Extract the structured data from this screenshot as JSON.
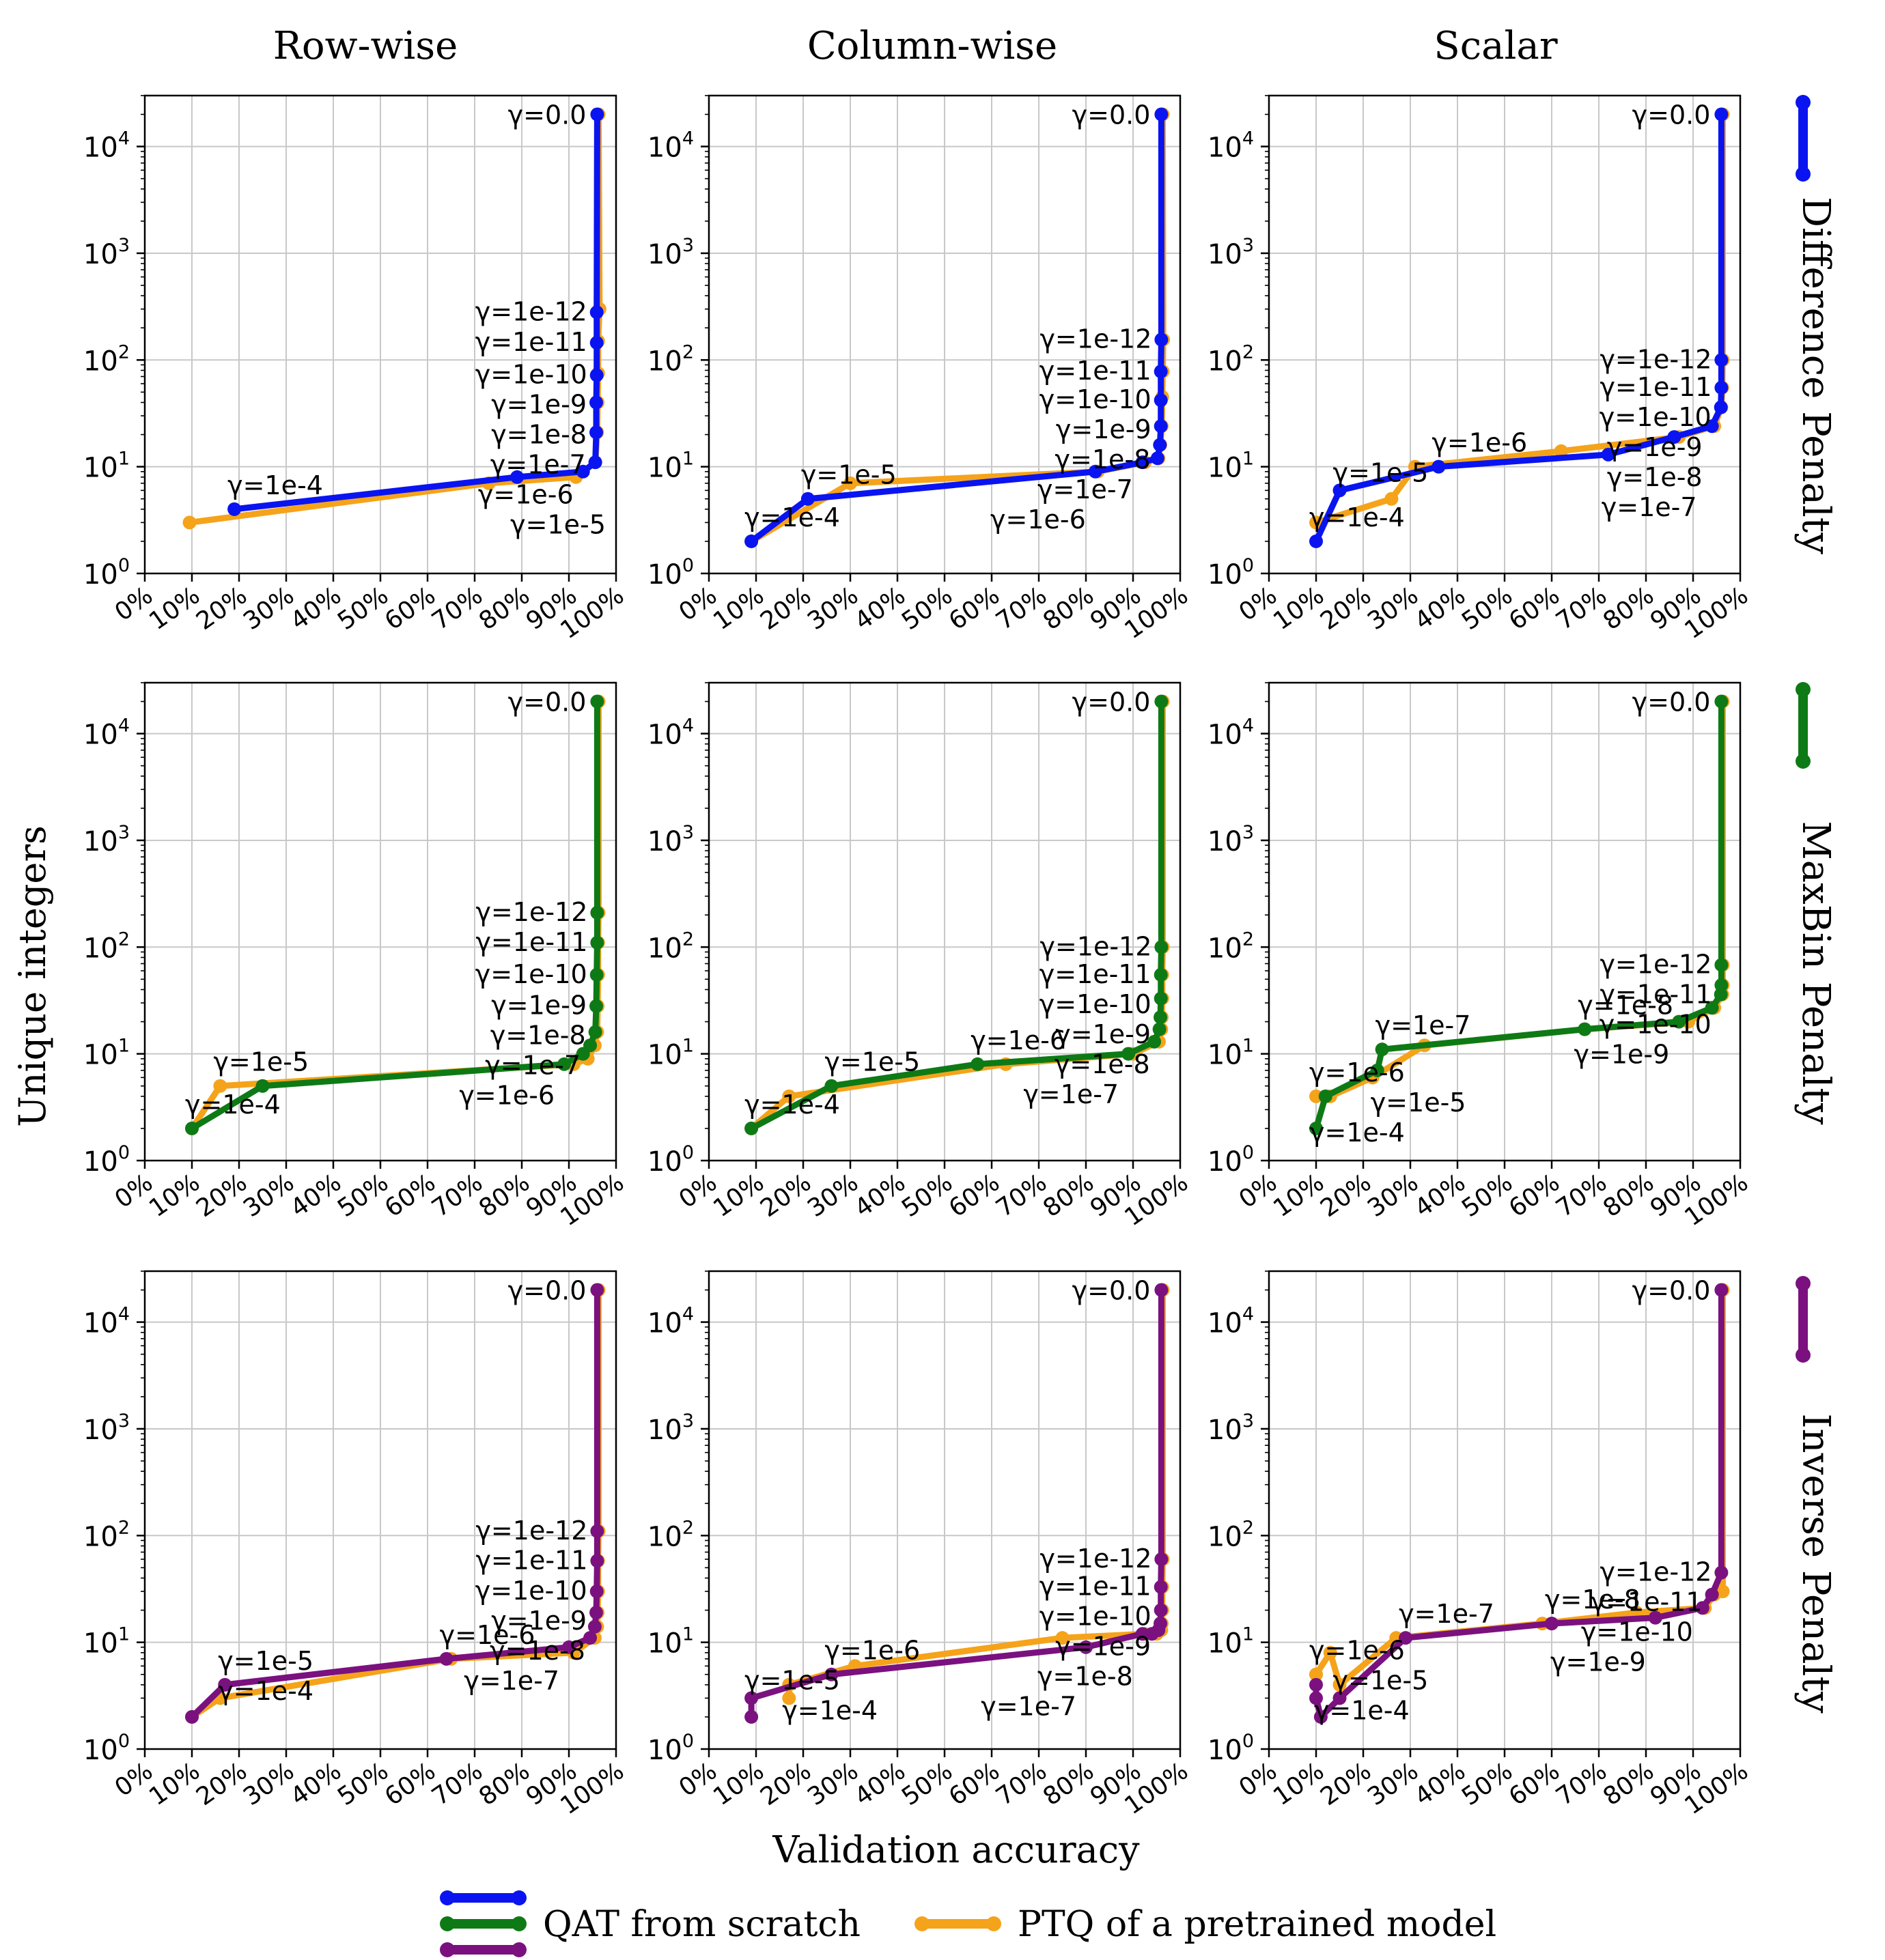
{
  "figure": {
    "col_titles": [
      "Row-wise",
      "Column-wise",
      "Scalar"
    ],
    "row_titles": [
      "Difference Penalty",
      "MaxBin Penalty",
      "Inverse Penalty"
    ],
    "xlabel": "Validation accuracy",
    "ylabel": "Unique integers"
  },
  "colors": {
    "qat_blue": "#0a14f0",
    "qat_green": "#0e7a16",
    "qat_purple": "#7a117f",
    "ptq": "#f5a31a",
    "grid": "#c8c8c8",
    "axis": "#000000"
  },
  "legend": {
    "qat_label": "QAT from scratch",
    "ptq_label": "PTQ of a pretrained model"
  },
  "axes_common": {
    "x_ticks": [
      "0%",
      "10%",
      "20%",
      "30%",
      "40%",
      "50%",
      "60%",
      "70%",
      "80%",
      "90%",
      "100%"
    ],
    "y_ticks": [
      "10",
      "10",
      "10",
      "10",
      "10"
    ],
    "y_tick_exponents": [
      "0",
      "1",
      "2",
      "3",
      "4"
    ],
    "xlim": [
      0,
      100
    ],
    "ylim": [
      1,
      30000
    ],
    "yscale": "log",
    "grid": true
  },
  "chart_data": [
    {
      "type": "line",
      "row": 0,
      "col": 0,
      "qat": {
        "x": [
          96.0,
          95.9,
          95.9,
          95.9,
          95.8,
          95.8,
          95.6,
          93.0,
          79.0,
          19.0
        ],
        "y": [
          20000,
          280,
          145,
          72,
          40,
          21,
          11,
          9,
          8,
          4
        ]
      },
      "ptq": {
        "x": [
          96.3,
          96.5,
          96.2,
          96.2,
          96.1,
          96.0,
          95.6,
          91.5,
          73.0,
          9.5
        ],
        "y": [
          20000,
          300,
          150,
          75,
          40,
          21,
          11,
          8,
          7,
          3
        ]
      },
      "annotations": [
        {
          "text": "γ=0.0",
          "x": 96.0,
          "y": 20000
        },
        {
          "text": "γ=1e-12",
          "x": 95.9,
          "y": 280
        },
        {
          "text": "γ=1e-11",
          "x": 95.9,
          "y": 145
        },
        {
          "text": "γ=1e-10",
          "x": 95.9,
          "y": 72
        },
        {
          "text": "γ=1e-9",
          "x": 95.8,
          "y": 40
        },
        {
          "text": "γ=1e-8",
          "x": 95.8,
          "y": 21
        },
        {
          "text": "γ=1e-7",
          "x": 95.6,
          "y": 11
        },
        {
          "text": "γ=1e-6",
          "x": 93.0,
          "y": 9
        },
        {
          "text": "γ=1e-5",
          "x": 79.0,
          "y": 8
        },
        {
          "text": "γ=1e-4",
          "x": 19.0,
          "y": 4
        }
      ]
    },
    {
      "type": "line",
      "row": 0,
      "col": 1,
      "qat": {
        "x": [
          96.0,
          96.0,
          95.9,
          95.9,
          95.9,
          95.7,
          95.2,
          92.0,
          82.0,
          21.0,
          9.0
        ],
        "y": [
          20000,
          155,
          78,
          42,
          24,
          16,
          12,
          11,
          9,
          5,
          2
        ]
      },
      "ptq": {
        "x": [
          96.3,
          96.4,
          96.3,
          96.2,
          96.1,
          95.8,
          95.4,
          92.5,
          82.5,
          30.0,
          9.0
        ],
        "y": [
          20000,
          155,
          78,
          45,
          24,
          16,
          12,
          11,
          9,
          7,
          2
        ]
      },
      "annotations": [
        {
          "text": "γ=0.0",
          "x": 96.0,
          "y": 20000
        },
        {
          "text": "γ=1e-12",
          "x": 96.0,
          "y": 155
        },
        {
          "text": "γ=1e-11",
          "x": 95.9,
          "y": 78
        },
        {
          "text": "γ=1e-10",
          "x": 95.9,
          "y": 42
        },
        {
          "text": "γ=1e-9",
          "x": 95.9,
          "y": 24
        },
        {
          "text": "γ=1e-8",
          "x": 95.7,
          "y": 16
        },
        {
          "text": "γ=1e-7",
          "x": 92.0,
          "y": 11
        },
        {
          "text": "γ=1e-6",
          "x": 82.0,
          "y": 9
        },
        {
          "text": "γ=1e-5",
          "x": 21.0,
          "y": 5
        },
        {
          "text": "γ=1e-4",
          "x": 9.0,
          "y": 2
        }
      ]
    },
    {
      "type": "line",
      "row": 0,
      "col": 2,
      "qat": {
        "x": [
          96.0,
          96.0,
          96.0,
          95.9,
          94.0,
          86.0,
          72.0,
          36.0,
          15.0,
          10.0
        ],
        "y": [
          20000,
          100,
          55,
          36,
          24,
          19,
          13,
          10,
          6,
          2
        ]
      },
      "ptq": {
        "x": [
          96.3,
          96.3,
          96.2,
          96.0,
          94.5,
          87.0,
          62.0,
          31.0,
          26.0,
          10.0
        ],
        "y": [
          20000,
          100,
          55,
          36,
          24,
          19,
          14,
          10,
          5,
          3
        ]
      },
      "annotations": [
        {
          "text": "γ=0.0",
          "x": 96.0,
          "y": 20000
        },
        {
          "text": "γ=1e-12",
          "x": 96.0,
          "y": 100
        },
        {
          "text": "γ=1e-11",
          "x": 96.0,
          "y": 55
        },
        {
          "text": "γ=1e-10",
          "x": 95.9,
          "y": 36
        },
        {
          "text": "γ=1e-9",
          "x": 94.0,
          "y": 24
        },
        {
          "text": "γ=1e-8",
          "x": 94.0,
          "y": 24
        },
        {
          "text": "γ=1e-7",
          "x": 72.0,
          "y": 13
        },
        {
          "text": "γ=1e-6",
          "x": 36.0,
          "y": 10
        },
        {
          "text": "γ=1e-5",
          "x": 15.0,
          "y": 6
        },
        {
          "text": "γ=1e-4",
          "x": 10.0,
          "y": 2
        }
      ]
    },
    {
      "type": "line",
      "row": 1,
      "col": 0,
      "qat": {
        "x": [
          96.0,
          96.0,
          96.0,
          95.9,
          95.8,
          95.6,
          94.5,
          93.0,
          89.0,
          25.0,
          10.0
        ],
        "y": [
          20000,
          210,
          110,
          55,
          28,
          16,
          12,
          10,
          8,
          5,
          2
        ]
      },
      "ptq": {
        "x": [
          96.3,
          96.3,
          96.2,
          96.2,
          96.1,
          96.0,
          95.5,
          94.0,
          91.0,
          16.0,
          10.0
        ],
        "y": [
          20000,
          210,
          110,
          55,
          28,
          16,
          12,
          9,
          8,
          5,
          2
        ]
      },
      "annotations": [
        {
          "text": "γ=0.0",
          "x": 96.0,
          "y": 20000
        },
        {
          "text": "γ=1e-12",
          "x": 96.0,
          "y": 210
        },
        {
          "text": "γ=1e-11",
          "x": 96.0,
          "y": 110
        },
        {
          "text": "γ=1e-10",
          "x": 95.9,
          "y": 55
        },
        {
          "text": "γ=1e-9",
          "x": 95.8,
          "y": 28
        },
        {
          "text": "γ=1e-8",
          "x": 95.6,
          "y": 16
        },
        {
          "text": "γ=1e-7",
          "x": 94.5,
          "y": 12
        },
        {
          "text": "γ=1e-6",
          "x": 89.0,
          "y": 8
        },
        {
          "text": "γ=1e-5",
          "x": 16.0,
          "y": 5
        },
        {
          "text": "γ=1e-4",
          "x": 10.0,
          "y": 2
        }
      ]
    },
    {
      "type": "line",
      "row": 1,
      "col": 1,
      "qat": {
        "x": [
          96.0,
          96.0,
          95.9,
          95.9,
          95.8,
          95.6,
          94.5,
          89.0,
          57.0,
          26.0,
          9.0
        ],
        "y": [
          20000,
          100,
          55,
          33,
          22,
          17,
          13,
          10,
          8,
          5,
          2
        ]
      },
      "ptq": {
        "x": [
          96.3,
          96.3,
          96.2,
          96.2,
          96.1,
          96.0,
          95.5,
          90.0,
          63.0,
          17.0,
          9.0
        ],
        "y": [
          20000,
          100,
          55,
          33,
          22,
          17,
          13,
          10,
          8,
          4,
          2
        ]
      },
      "annotations": [
        {
          "text": "γ=0.0",
          "x": 96.0,
          "y": 20000
        },
        {
          "text": "γ=1e-12",
          "x": 96.0,
          "y": 100
        },
        {
          "text": "γ=1e-11",
          "x": 95.9,
          "y": 55
        },
        {
          "text": "γ=1e-10",
          "x": 95.9,
          "y": 33
        },
        {
          "text": "γ=1e-9",
          "x": 95.8,
          "y": 22
        },
        {
          "text": "γ=1e-8",
          "x": 95.6,
          "y": 17
        },
        {
          "text": "γ=1e-7",
          "x": 89.0,
          "y": 10
        },
        {
          "text": "γ=1e-6",
          "x": 57.0,
          "y": 8
        },
        {
          "text": "γ=1e-5",
          "x": 26.0,
          "y": 5
        },
        {
          "text": "γ=1e-4",
          "x": 9.0,
          "y": 2
        }
      ]
    },
    {
      "type": "line",
      "row": 1,
      "col": 2,
      "qat": {
        "x": [
          96.0,
          96.0,
          96.0,
          95.9,
          94.0,
          87.0,
          67.0,
          24.0,
          23.0,
          12.0,
          10.0
        ],
        "y": [
          20000,
          68,
          44,
          36,
          27,
          20,
          17,
          11,
          7,
          4,
          2
        ]
      },
      "ptq": {
        "x": [
          96.3,
          96.3,
          96.3,
          96.2,
          94.5,
          89.0,
          67.0,
          33.0,
          22.0,
          13.0,
          10.0
        ],
        "y": [
          20000,
          68,
          44,
          36,
          27,
          20,
          17,
          12,
          6,
          4,
          4
        ]
      },
      "annotations": [
        {
          "text": "γ=0.0",
          "x": 96.0,
          "y": 20000
        },
        {
          "text": "γ=1e-12",
          "x": 96.0,
          "y": 68
        },
        {
          "text": "γ=1e-11",
          "x": 96.0,
          "y": 44
        },
        {
          "text": "γ=1e-10",
          "x": 95.9,
          "y": 36
        },
        {
          "text": "γ=1e-9",
          "x": 87.0,
          "y": 20
        },
        {
          "text": "γ=1e-8",
          "x": 67.0,
          "y": 17
        },
        {
          "text": "γ=1e-7",
          "x": 24.0,
          "y": 11
        },
        {
          "text": "γ=1e-6",
          "x": 10.0,
          "y": 4
        },
        {
          "text": "γ=1e-5",
          "x": 23.0,
          "y": 7
        },
        {
          "text": "γ=1e-4",
          "x": 10.0,
          "y": 2
        }
      ]
    },
    {
      "type": "line",
      "row": 2,
      "col": 0,
      "qat": {
        "x": [
          96.0,
          96.0,
          96.0,
          95.9,
          95.8,
          95.5,
          94.5,
          90.0,
          64.0,
          17.0,
          10.0
        ],
        "y": [
          20000,
          110,
          58,
          30,
          19,
          14,
          11,
          9,
          7,
          4,
          2
        ]
      },
      "ptq": {
        "x": [
          96.3,
          96.3,
          96.2,
          96.2,
          96.1,
          96.0,
          95.5,
          91.0,
          65.0,
          16.0,
          10.0
        ],
        "y": [
          20000,
          110,
          58,
          30,
          19,
          14,
          11,
          8,
          7,
          3,
          2
        ]
      },
      "annotations": [
        {
          "text": "γ=0.0",
          "x": 96.0,
          "y": 20000
        },
        {
          "text": "γ=1e-12",
          "x": 96.0,
          "y": 110
        },
        {
          "text": "γ=1e-11",
          "x": 96.0,
          "y": 58
        },
        {
          "text": "γ=1e-10",
          "x": 95.9,
          "y": 30
        },
        {
          "text": "γ=1e-9",
          "x": 95.8,
          "y": 19
        },
        {
          "text": "γ=1e-8",
          "x": 95.5,
          "y": 14
        },
        {
          "text": "γ=1e-7",
          "x": 90.0,
          "y": 9
        },
        {
          "text": "γ=1e-6",
          "x": 64.0,
          "y": 7
        },
        {
          "text": "γ=1e-5",
          "x": 17.0,
          "y": 4
        },
        {
          "text": "γ=1e-4",
          "x": 17.0,
          "y": 4
        }
      ]
    },
    {
      "type": "line",
      "row": 2,
      "col": 1,
      "qat": {
        "x": [
          96.0,
          96.0,
          95.9,
          95.9,
          95.8,
          95.4,
          94.0,
          92.0,
          80.0,
          26.0,
          9.0,
          9.0
        ],
        "y": [
          20000,
          60,
          33,
          20,
          15,
          13,
          12,
          12,
          9,
          5,
          3,
          2
        ]
      },
      "ptq": {
        "x": [
          96.3,
          96.3,
          96.2,
          96.2,
          96.1,
          96.0,
          95.0,
          92.5,
          75.0,
          31.0,
          17.0,
          17.0
        ],
        "y": [
          20000,
          60,
          33,
          20,
          15,
          13,
          12,
          12,
          11,
          6,
          4,
          3
        ]
      },
      "annotations": [
        {
          "text": "γ=0.0",
          "x": 96.0,
          "y": 20000
        },
        {
          "text": "γ=1e-12",
          "x": 96.0,
          "y": 60
        },
        {
          "text": "γ=1e-11",
          "x": 95.9,
          "y": 33
        },
        {
          "text": "γ=1e-10",
          "x": 95.9,
          "y": 20
        },
        {
          "text": "γ=1e-9",
          "x": 95.8,
          "y": 15
        },
        {
          "text": "γ=1e-8",
          "x": 92.0,
          "y": 12
        },
        {
          "text": "γ=1e-7",
          "x": 80.0,
          "y": 9
        },
        {
          "text": "γ=1e-6",
          "x": 26.0,
          "y": 5
        },
        {
          "text": "γ=1e-5",
          "x": 9.0,
          "y": 3
        },
        {
          "text": "γ=1e-4",
          "x": 17.0,
          "y": 3
        }
      ]
    },
    {
      "type": "line",
      "row": 2,
      "col": 2,
      "qat": {
        "x": [
          96.0,
          96.0,
          94.0,
          92.0,
          82.0,
          60.0,
          29.0,
          15.0,
          11.0,
          10.0,
          10.0
        ],
        "y": [
          20000,
          45,
          28,
          21,
          17,
          15,
          11,
          3,
          2,
          3,
          4
        ]
      },
      "ptq": {
        "x": [
          96.3,
          96.3,
          94.5,
          92.5,
          78.0,
          58.0,
          27.0,
          15.0,
          13.0,
          10.0,
          10.0
        ],
        "y": [
          20000,
          30,
          28,
          21,
          19,
          15,
          11,
          4,
          8,
          5,
          5
        ]
      },
      "annotations": [
        {
          "text": "γ=0.0",
          "x": 96.0,
          "y": 20000
        },
        {
          "text": "γ=1e-12",
          "x": 96.0,
          "y": 45
        },
        {
          "text": "γ=1e-11",
          "x": 94.0,
          "y": 28
        },
        {
          "text": "γ=1e-10",
          "x": 92.0,
          "y": 21
        },
        {
          "text": "γ=1e-9",
          "x": 82.0,
          "y": 17
        },
        {
          "text": "γ=1e-8",
          "x": 60.0,
          "y": 15
        },
        {
          "text": "γ=1e-7",
          "x": 29.0,
          "y": 11
        },
        {
          "text": "γ=1e-6",
          "x": 10.0,
          "y": 5
        },
        {
          "text": "γ=1e-5",
          "x": 15.0,
          "y": 3
        },
        {
          "text": "γ=1e-4",
          "x": 11.0,
          "y": 2
        }
      ]
    }
  ]
}
